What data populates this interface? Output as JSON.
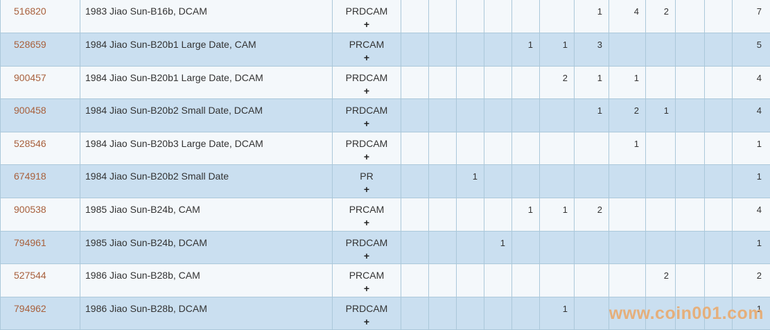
{
  "watermark": "www.coin001.com",
  "colors": {
    "row_odd_bg": "#f4f8fb",
    "row_even_bg": "#cadff0",
    "border": "#abc8da",
    "cert_link_text": "#a8603c",
    "body_text": "#333333",
    "watermark_text": "#e8ab72"
  },
  "table": {
    "grade_column_count": 11,
    "rows": [
      {
        "id": "516820",
        "description": "1983 Jiao Sun-B16b, DCAM",
        "designation": "PRDCAM",
        "plus": "+",
        "grades": [
          "",
          "",
          "",
          "",
          "",
          "",
          "1",
          "4",
          "2",
          "",
          ""
        ],
        "total": "7"
      },
      {
        "id": "528659",
        "description": "1984 Jiao Sun-B20b1 Large Date, CAM",
        "designation": "PRCAM",
        "plus": "+",
        "grades": [
          "",
          "",
          "",
          "",
          "1",
          "1",
          "3",
          "",
          "",
          "",
          ""
        ],
        "total": "5"
      },
      {
        "id": "900457",
        "description": "1984 Jiao Sun-B20b1 Large Date, DCAM",
        "designation": "PRDCAM",
        "plus": "+",
        "grades": [
          "",
          "",
          "",
          "",
          "",
          "2",
          "1",
          "1",
          "",
          "",
          ""
        ],
        "total": "4"
      },
      {
        "id": "900458",
        "description": "1984 Jiao Sun-B20b2 Small Date, DCAM",
        "designation": "PRDCAM",
        "plus": "+",
        "grades": [
          "",
          "",
          "",
          "",
          "",
          "",
          "1",
          "2",
          "1",
          "",
          ""
        ],
        "total": "4"
      },
      {
        "id": "528546",
        "description": "1984 Jiao Sun-B20b3 Large Date, DCAM",
        "designation": "PRDCAM",
        "plus": "+",
        "grades": [
          "",
          "",
          "",
          "",
          "",
          "",
          "",
          "1",
          "",
          "",
          ""
        ],
        "total": "1"
      },
      {
        "id": "674918",
        "description": "1984 Jiao Sun-B20b2 Small Date",
        "designation": "PR",
        "plus": "+",
        "grades": [
          "",
          "",
          "1",
          "",
          "",
          "",
          "",
          "",
          "",
          "",
          ""
        ],
        "total": "1"
      },
      {
        "id": "900538",
        "description": "1985 Jiao Sun-B24b, CAM",
        "designation": "PRCAM",
        "plus": "+",
        "grades": [
          "",
          "",
          "",
          "",
          "1",
          "1",
          "2",
          "",
          "",
          "",
          ""
        ],
        "total": "4"
      },
      {
        "id": "794961",
        "description": "1985 Jiao Sun-B24b, DCAM",
        "designation": "PRDCAM",
        "plus": "+",
        "grades": [
          "",
          "",
          "",
          "1",
          "",
          "",
          "",
          "",
          "",
          "",
          ""
        ],
        "total": "1"
      },
      {
        "id": "527544",
        "description": "1986 Jiao Sun-B28b, CAM",
        "designation": "PRCAM",
        "plus": "+",
        "grades": [
          "",
          "",
          "",
          "",
          "",
          "",
          "",
          "",
          "2",
          "",
          ""
        ],
        "total": "2"
      },
      {
        "id": "794962",
        "description": "1986 Jiao Sun-B28b, DCAM",
        "designation": "PRDCAM",
        "plus": "+",
        "grades": [
          "",
          "",
          "",
          "",
          "",
          "1",
          "",
          "",
          "",
          "",
          ""
        ],
        "total": "1"
      }
    ]
  }
}
